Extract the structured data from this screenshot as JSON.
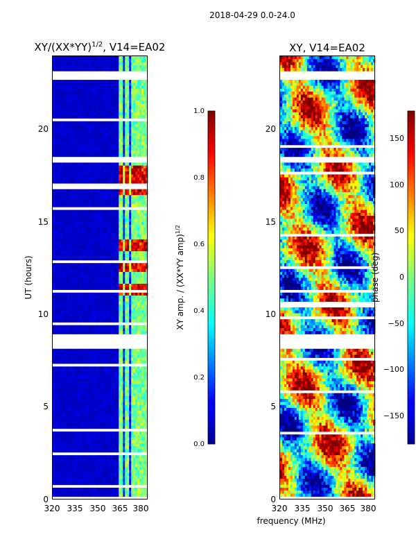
{
  "figure_title": "2018-04-29 0.0-24.0",
  "shared_xlabel": "frequency (MHz)",
  "chart_data": [
    {
      "type": "heatmap",
      "title": "XY/(XX*YY)",
      "title_exponent": "1/2",
      "title_suffix": ", V14=EA02",
      "xlabel": "",
      "ylabel": "UT (hours)",
      "xlim": [
        320,
        382
      ],
      "ylim": [
        0,
        24
      ],
      "xticks": [
        "320",
        "335",
        "350",
        "365",
        "380"
      ],
      "xtick_values": [
        320,
        335,
        350,
        365,
        380
      ],
      "yticks": [
        "0",
        "5",
        "10",
        "15",
        "20"
      ],
      "ytick_values": [
        0,
        5,
        10,
        15,
        20
      ],
      "colorbar": {
        "label": "XY amp. / (XX*YY amp)",
        "label_exponent": "1/2",
        "range": [
          0.0,
          1.0
        ],
        "ticks": [
          "0.0",
          "0.2",
          "0.4",
          "0.6",
          "0.8",
          "1.0"
        ],
        "tick_values": [
          0.0,
          0.2,
          0.4,
          0.6,
          0.8,
          1.0
        ],
        "colormap": "jet"
      },
      "active_band_mhz": [
        363,
        382
      ],
      "band_channels_mhz": [
        364.5,
        368.5,
        373,
        376.5,
        380
      ],
      "high_amp_hours": [
        [
          11.0,
          11.6
        ],
        [
          12.4,
          13.0
        ],
        [
          13.4,
          14.0
        ],
        [
          16.5,
          18.0
        ]
      ],
      "flagged_hours": [
        [
          8.1,
          9.0
        ],
        [
          18.2,
          18.6
        ],
        [
          22.8,
          23.2
        ]
      ]
    },
    {
      "type": "heatmap",
      "title": "XY, V14=EA02",
      "xlabel": "frequency (MHz)",
      "ylabel": "",
      "xlim": [
        320,
        382
      ],
      "ylim": [
        0,
        24
      ],
      "xticks": [
        "320",
        "335",
        "350",
        "365",
        "380"
      ],
      "xtick_values": [
        320,
        335,
        350,
        365,
        380
      ],
      "yticks": [
        "0",
        "5",
        "10",
        "15",
        "20"
      ],
      "ytick_values": [
        0,
        5,
        10,
        15,
        20
      ],
      "colorbar": {
        "label": "phase (deg)",
        "range": [
          -180,
          180
        ],
        "ticks": [
          "−150",
          "−100",
          "−50",
          "0",
          "50",
          "100",
          "150"
        ],
        "tick_values": [
          -150,
          -100,
          -50,
          0,
          50,
          100,
          150
        ],
        "colormap": "jet"
      },
      "flagged_hours": [
        [
          8.1,
          9.0
        ],
        [
          18.2,
          18.6
        ],
        [
          22.8,
          23.2
        ]
      ]
    }
  ],
  "colors": {
    "jet_low": "#00008f",
    "jet_high": "#800000",
    "flag": "#ffffff"
  }
}
